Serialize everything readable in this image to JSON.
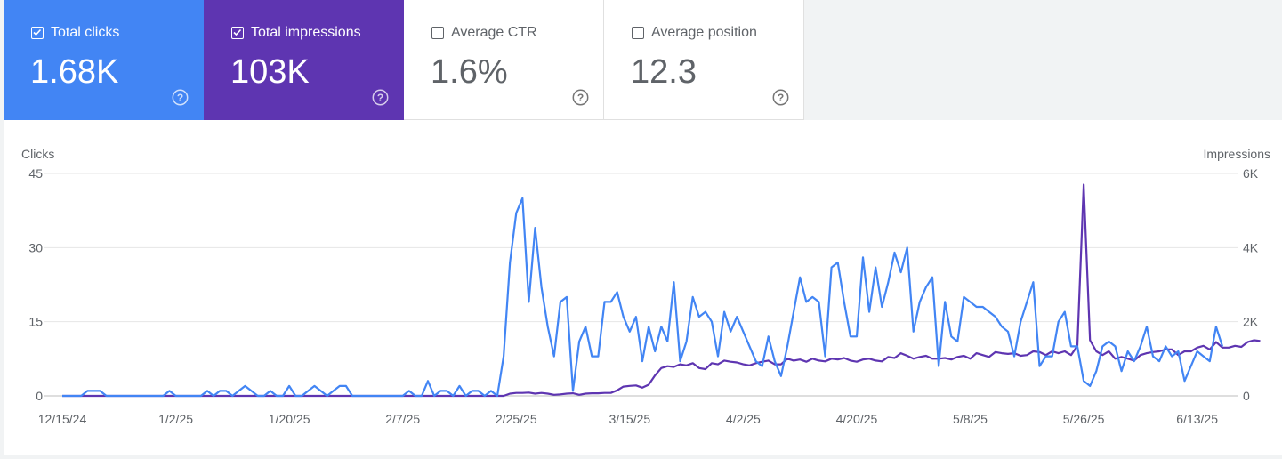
{
  "cards": [
    {
      "label": "Total clicks",
      "value": "1.68K",
      "checked": true
    },
    {
      "label": "Total impressions",
      "value": "103K",
      "checked": true
    },
    {
      "label": "Average CTR",
      "value": "1.6%",
      "checked": false
    },
    {
      "label": "Average position",
      "value": "12.3",
      "checked": false
    }
  ],
  "icons": {
    "checkbox": "checkbox-icon",
    "help": "help-circle-icon"
  },
  "colors": {
    "clicks": "#4285f4",
    "impressions": "#5e35b1",
    "grid": "#e6e6e6",
    "axis_text": "#5f6368"
  },
  "chart_data": {
    "type": "line",
    "ylabel_left": "Clicks",
    "ylabel_right": "Impressions",
    "y_left_ticks": [
      "0",
      "15",
      "30",
      "45"
    ],
    "y_right_ticks": [
      "0",
      "2K",
      "4K",
      "6K"
    ],
    "y_left_range": [
      0,
      45
    ],
    "y_right_range": [
      0,
      6000
    ],
    "x_range": [
      "12/15/24",
      "6/13/25"
    ],
    "x_tick_labels": [
      "12/15/24",
      "1/2/25",
      "1/20/25",
      "2/7/25",
      "2/25/25",
      "3/15/25",
      "4/2/25",
      "4/20/25",
      "5/8/25",
      "5/26/25",
      "6/13/25"
    ],
    "x_tick_offsets": [
      0,
      18,
      36,
      54,
      72,
      90,
      108,
      126,
      144,
      162,
      180
    ],
    "grid": true,
    "series": [
      {
        "name": "Total clicks",
        "axis": "left",
        "values": [
          0,
          0,
          0,
          0,
          1,
          1,
          1,
          0,
          0,
          0,
          0,
          0,
          0,
          0,
          0,
          0,
          0,
          1,
          0,
          0,
          0,
          0,
          0,
          1,
          0,
          1,
          1,
          0,
          1,
          2,
          1,
          0,
          0,
          1,
          0,
          0,
          2,
          0,
          0,
          1,
          2,
          1,
          0,
          1,
          2,
          2,
          0,
          0,
          0,
          0,
          0,
          0,
          0,
          0,
          0,
          1,
          0,
          0,
          3,
          0,
          1,
          1,
          0,
          2,
          0,
          1,
          1,
          0,
          1,
          0,
          8,
          27,
          37,
          40,
          19,
          34,
          22,
          14,
          8,
          19,
          20,
          1,
          11,
          14,
          8,
          8,
          19,
          19,
          21,
          16,
          13,
          16,
          7,
          14,
          9,
          14,
          11,
          23,
          7,
          11,
          20,
          16,
          17,
          15,
          8,
          17,
          13,
          16,
          13,
          10,
          7,
          6,
          12,
          7,
          4,
          10,
          17,
          24,
          19,
          20,
          19,
          8,
          26,
          27,
          19,
          12,
          12,
          28,
          17,
          26,
          18,
          23,
          29,
          25,
          30,
          13,
          19,
          22,
          24,
          6,
          19,
          12,
          11,
          20,
          19,
          18,
          18,
          17,
          16,
          14,
          13,
          8,
          15,
          19,
          23,
          6,
          8,
          8,
          15,
          17,
          10,
          10,
          3,
          2,
          5,
          10,
          11,
          10,
          5,
          9,
          7,
          10,
          14,
          8,
          7,
          10,
          8,
          9,
          3,
          6,
          9,
          8,
          7,
          14,
          10
        ]
      },
      {
        "name": "Total impressions",
        "axis": "right",
        "values": [
          0,
          0,
          0,
          0,
          0,
          0,
          0,
          0,
          0,
          0,
          0,
          0,
          0,
          0,
          0,
          0,
          0,
          0,
          0,
          0,
          0,
          0,
          0,
          0,
          0,
          0,
          0,
          0,
          0,
          0,
          0,
          0,
          0,
          0,
          0,
          0,
          0,
          0,
          0,
          0,
          0,
          0,
          0,
          0,
          0,
          0,
          0,
          0,
          0,
          0,
          0,
          0,
          0,
          0,
          0,
          0,
          0,
          0,
          0,
          0,
          0,
          0,
          0,
          0,
          0,
          0,
          0,
          0,
          0,
          0,
          0,
          60,
          80,
          80,
          90,
          60,
          80,
          60,
          30,
          40,
          60,
          70,
          30,
          60,
          70,
          70,
          80,
          80,
          150,
          250,
          270,
          280,
          220,
          300,
          550,
          750,
          800,
          780,
          850,
          820,
          880,
          750,
          720,
          880,
          850,
          950,
          920,
          900,
          850,
          820,
          880,
          920,
          950,
          850,
          850,
          1000,
          950,
          980,
          920,
          1000,
          950,
          930,
          1000,
          980,
          1020,
          950,
          920,
          980,
          1000,
          950,
          930,
          1050,
          1020,
          1150,
          1080,
          1000,
          1050,
          1080,
          1000,
          1000,
          1020,
          980,
          1050,
          1080,
          1000,
          1150,
          1100,
          1050,
          1180,
          1150,
          1130,
          1150,
          1080,
          1100,
          1200,
          1180,
          1100,
          1200,
          1150,
          1200,
          1100,
          1350,
          5700,
          1500,
          1200,
          1100,
          1200,
          1000,
          1050,
          1000,
          950,
          1100,
          1150,
          1180,
          1200,
          1250,
          1250,
          1100,
          1200,
          1200,
          1300,
          1350,
          1250,
          1450,
          1300,
          1300,
          1350,
          1320,
          1450,
          1500,
          1480
        ]
      }
    ]
  }
}
